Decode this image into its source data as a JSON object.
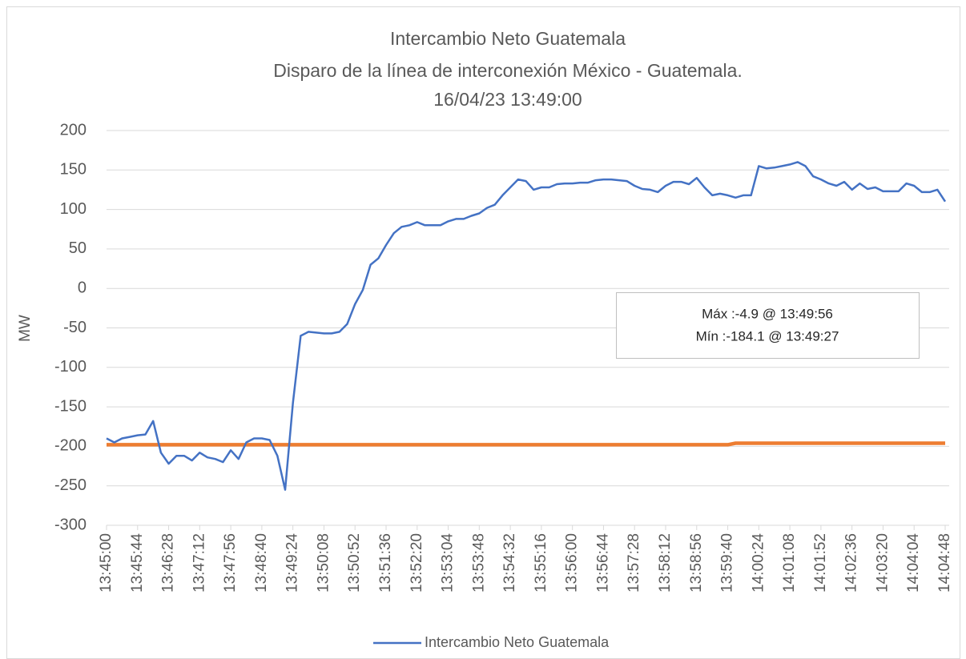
{
  "chart_data": {
    "type": "line",
    "title": "Intercambio Neto Guatemala",
    "subtitle": [
      "Disparo de la línea de interconexión México - Guatemala.",
      "16/04/23 13:49:00"
    ],
    "ylabel": "MW",
    "annotations": [
      "Máx :-4.9 @ 13:49:56",
      "Mín :-184.1 @ 13:49:27"
    ],
    "categories": [
      "13:45:00",
      null,
      null,
      null,
      "13:45:44",
      null,
      null,
      null,
      "13:46:28",
      null,
      null,
      null,
      "13:47:12",
      null,
      null,
      null,
      "13:47:56",
      null,
      null,
      null,
      "13:48:40",
      null,
      null,
      null,
      "13:49:24",
      null,
      null,
      null,
      "13:50:08",
      null,
      null,
      null,
      "13:50:52",
      null,
      null,
      null,
      "13:51:36",
      null,
      null,
      null,
      "13:52:20",
      null,
      null,
      null,
      "13:53:04",
      null,
      null,
      null,
      "13:53:48",
      null,
      null,
      null,
      "13:54:32",
      null,
      null,
      null,
      "13:55:16",
      null,
      null,
      null,
      "13:56:00",
      null,
      null,
      null,
      "13:56:44",
      null,
      null,
      null,
      "13:57:28",
      null,
      null,
      null,
      "13:58:12",
      null,
      null,
      null,
      "13:58:56",
      null,
      null,
      null,
      "13:59:40",
      null,
      null,
      null,
      "14:00:24",
      null,
      null,
      null,
      "14:01:08",
      null,
      null,
      null,
      "14:01:52",
      null,
      null,
      null,
      "14:02:36",
      null,
      null,
      null,
      "14:03:20",
      null,
      null,
      null,
      "14:04:04",
      null,
      null,
      null,
      "14:04:48"
    ],
    "series": [
      {
        "name": "Intercambio Neto Guatemala",
        "color": "#4472c4",
        "values": [
          -190,
          -195,
          -190,
          -188,
          -186,
          -185,
          -168,
          -208,
          -222,
          -212,
          -212,
          -218,
          -208,
          -214,
          -216,
          -220,
          -205,
          -216,
          -195,
          -190,
          -190,
          -192,
          -212,
          -255,
          -145,
          -60,
          -55,
          -56,
          -57,
          -57,
          -55,
          -45,
          -20,
          -2,
          30,
          38,
          55,
          70,
          78,
          80,
          84,
          80,
          80,
          80,
          85,
          88,
          88,
          92,
          95,
          102,
          106,
          118,
          128,
          138,
          136,
          125,
          128,
          128,
          132,
          133,
          133,
          134,
          134,
          137,
          138,
          138,
          137,
          136,
          130,
          126,
          125,
          122,
          130,
          135,
          135,
          132,
          140,
          128,
          118,
          120,
          118,
          115,
          118,
          118,
          155,
          152,
          153,
          155,
          157,
          160,
          155,
          142,
          138,
          133,
          130,
          135,
          125,
          133,
          126,
          128,
          123,
          123,
          123,
          133,
          130,
          122,
          122,
          125,
          110
        ]
      },
      {
        "color": "#ed7d31",
        "values": [
          -198,
          -198,
          -198,
          -198,
          -198,
          -198,
          -198,
          -198,
          -198,
          -198,
          -198,
          -198,
          -198,
          -198,
          -198,
          -198,
          -198,
          -198,
          -198,
          -198,
          -198,
          -198,
          -198,
          -198,
          -198,
          -198,
          -198,
          -198,
          -198,
          -198,
          -198,
          -198,
          -198,
          -198,
          -198,
          -198,
          -198,
          -198,
          -198,
          -198,
          -198,
          -198,
          -198,
          -198,
          -198,
          -198,
          -198,
          -198,
          -198,
          -198,
          -198,
          -198,
          -198,
          -198,
          -198,
          -198,
          -198,
          -198,
          -198,
          -198,
          -198,
          -198,
          -198,
          -198,
          -198,
          -198,
          -198,
          -198,
          -198,
          -198,
          -198,
          -198,
          -198,
          -198,
          -198,
          -198,
          -198,
          -198,
          -198,
          -198,
          -198,
          -196,
          -196,
          -196,
          -196,
          -196,
          -196,
          -196,
          -196,
          -196,
          -196,
          -196,
          -196,
          -196,
          -196,
          -196,
          -196,
          -196,
          -196,
          -196,
          -196,
          -196,
          -196,
          -196,
          -196,
          -196,
          -196,
          -196,
          -196
        ]
      }
    ],
    "ylim": [
      -300,
      200
    ],
    "yticks": [
      -300,
      -250,
      -200,
      -150,
      -100,
      -50,
      0,
      50,
      100,
      150,
      200
    ],
    "grid": true,
    "legend": "bottom"
  }
}
